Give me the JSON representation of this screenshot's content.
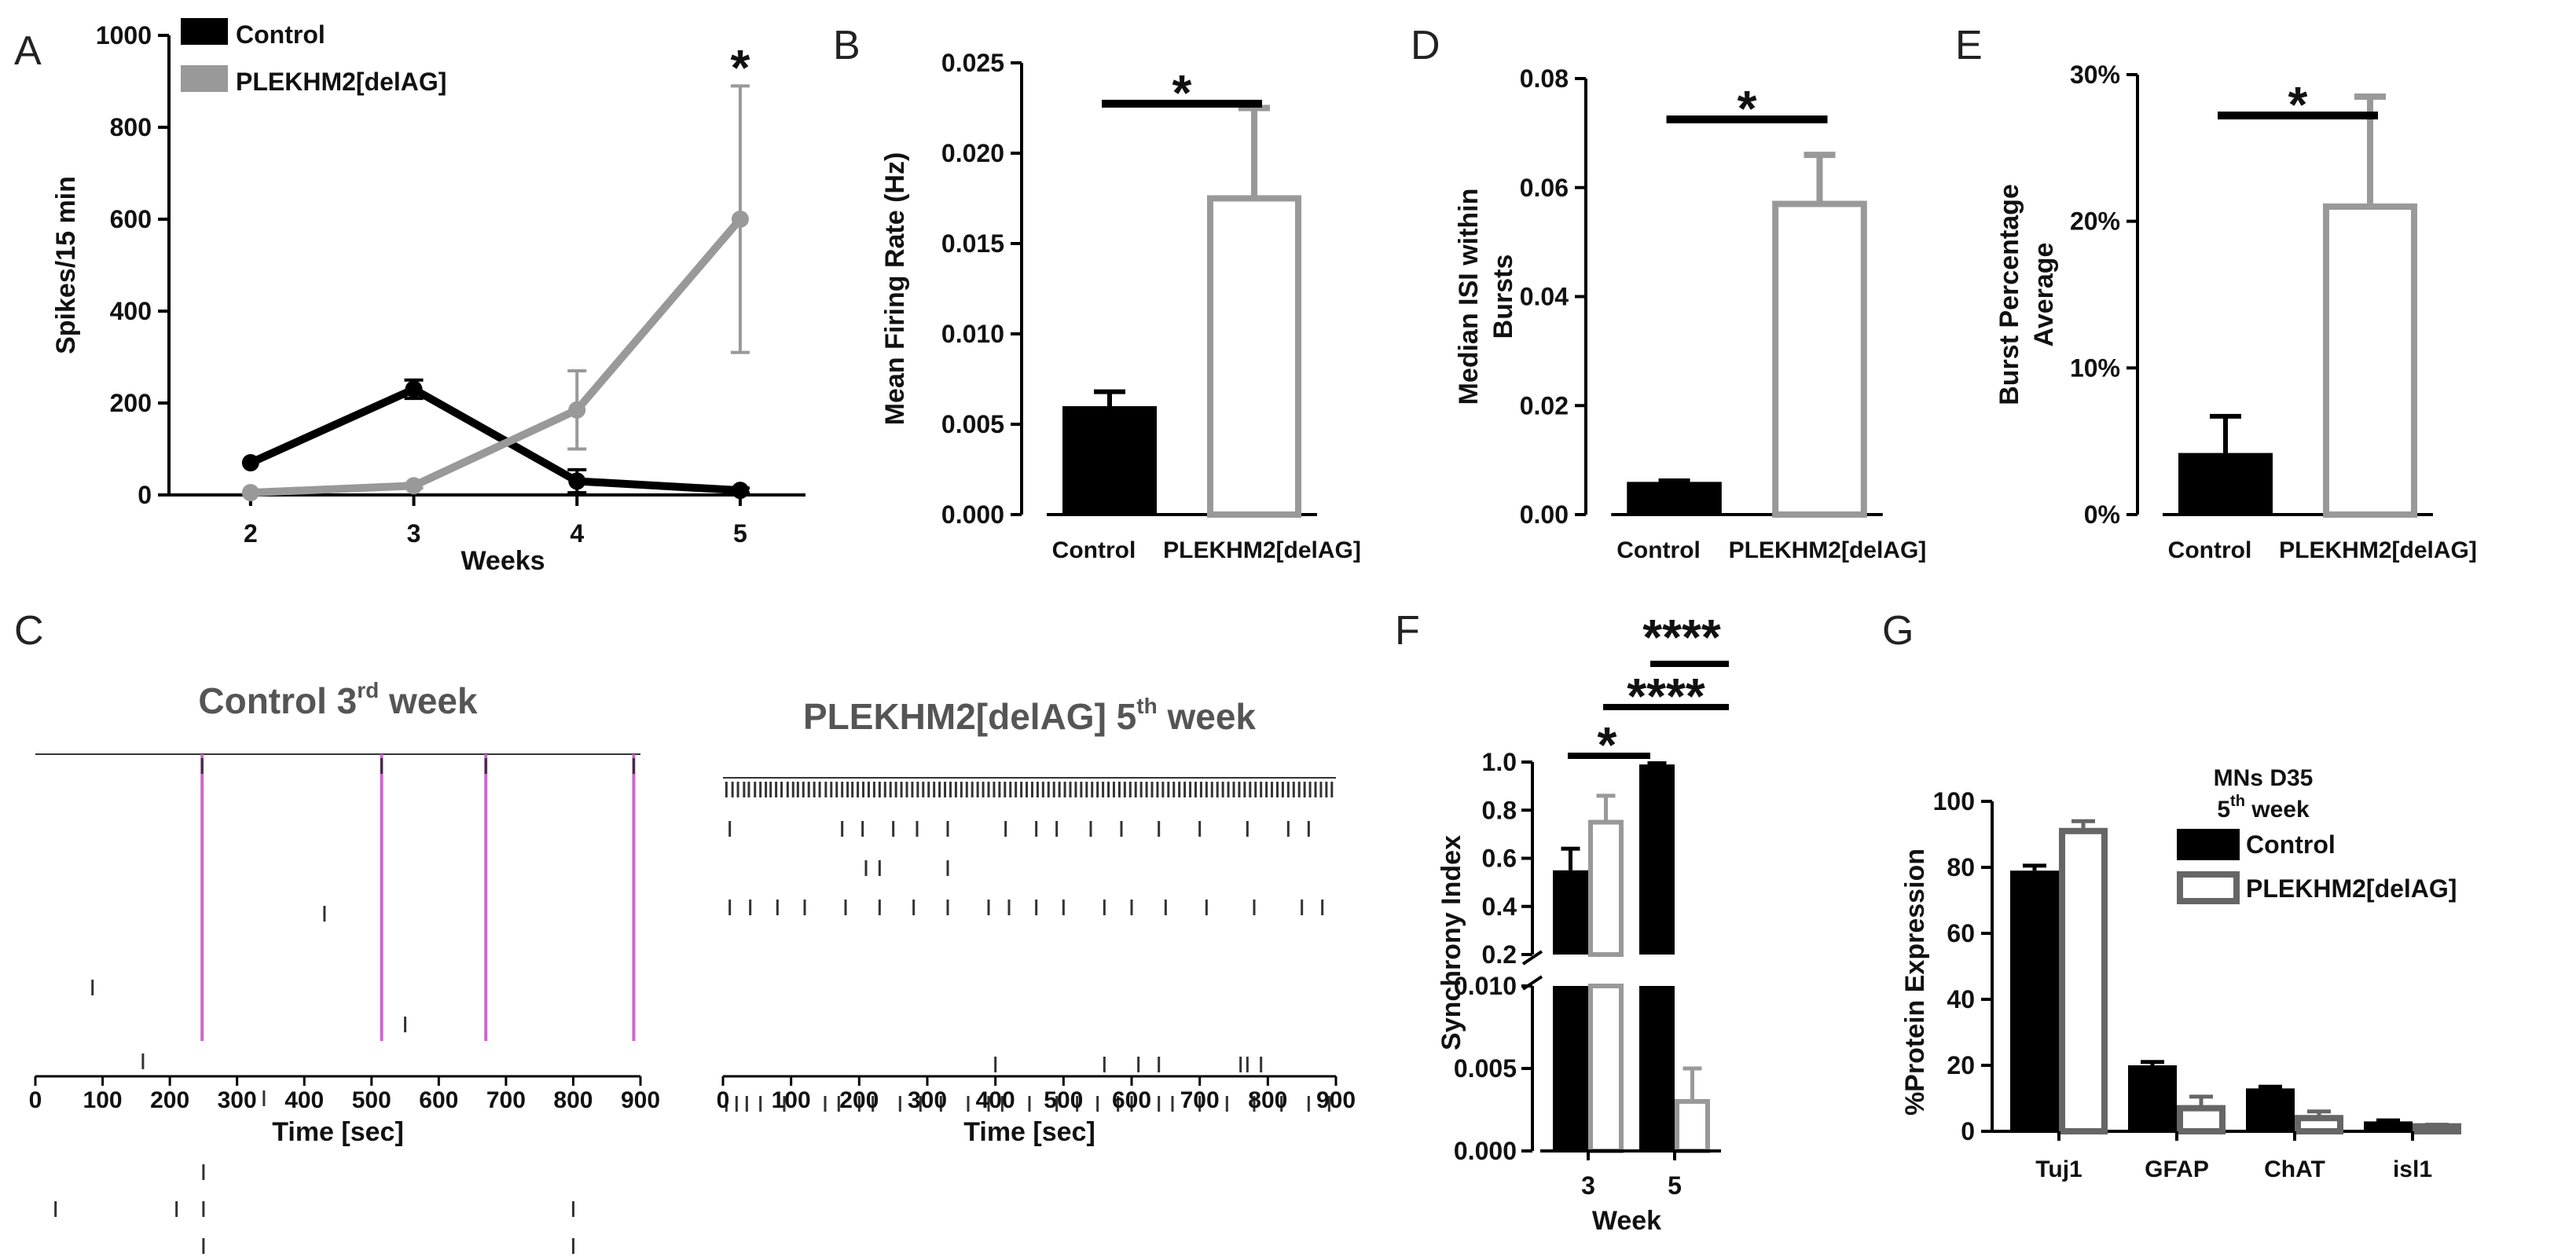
{
  "colors": {
    "control": "#000000",
    "mutant": "#999999",
    "raster": "#333333",
    "sync": "#cc66cc"
  },
  "panels": {
    "A": {
      "label": "A",
      "chart_data": {
        "type": "line",
        "xlabel": "Weeks",
        "ylabel": "Spikes/15 min",
        "x": [
          2,
          3,
          4,
          5
        ],
        "ylim": [
          0,
          1000
        ],
        "y_ticks": [
          0,
          200,
          400,
          600,
          800,
          1000
        ],
        "series": [
          {
            "name": "Control",
            "values": [
              70,
              230,
              30,
              10
            ],
            "errors": [
              0,
              20,
              25,
              5
            ]
          },
          {
            "name": "PLEKHM2[delAG]",
            "values": [
              5,
              20,
              185,
              600
            ],
            "errors": [
              0,
              5,
              85,
              290
            ]
          }
        ],
        "annotations": [
          {
            "text": "*",
            "x": 5
          }
        ]
      }
    },
    "B": {
      "label": "B",
      "chart_data": {
        "type": "bar",
        "ylabel": "Mean Firing Rate (Hz)",
        "categories": [
          "Control",
          "PLEKHM2[delAG]"
        ],
        "values": [
          0.006,
          0.0175
        ],
        "errors": [
          0.0008,
          0.005
        ],
        "ylim": [
          0,
          0.025
        ],
        "y_ticks": [
          "0.000",
          "0.005",
          "0.010",
          "0.015",
          "0.020",
          "0.025"
        ],
        "significance": "*"
      }
    },
    "D": {
      "label": "D",
      "chart_data": {
        "type": "bar",
        "ylabel_line1": "Median ISI within",
        "ylabel_line2": "Bursts",
        "categories": [
          "Control",
          "PLEKHM2[delAG]"
        ],
        "values": [
          0.006,
          0.057
        ],
        "errors": [
          0.0002,
          0.009
        ],
        "ylim": [
          0,
          0.08
        ],
        "y_ticks": [
          "0.00",
          "0.02",
          "0.04",
          "0.06",
          "0.08"
        ],
        "significance": "*"
      }
    },
    "E": {
      "label": "E",
      "chart_data": {
        "type": "bar",
        "ylabel_line1": "Burst Percentage",
        "ylabel_line2": "Average",
        "categories": [
          "Control",
          "PLEKHM2[delAG]"
        ],
        "values": [
          4.2,
          21
        ],
        "errors": [
          2.5,
          7.5
        ],
        "ylim": [
          0,
          30
        ],
        "y_ticks": [
          "0%",
          "10%",
          "20%",
          "30%"
        ],
        "significance": "*"
      }
    },
    "C": {
      "label": "C",
      "chart_data": {
        "type": "raster",
        "plots": [
          {
            "title": "Control 3",
            "title_sup": "rd",
            "title_tail": " week",
            "xlabel": "Time [sec]",
            "x_ticks": [
              "0",
              "100",
              "200",
              "300",
              "400",
              "500",
              "600",
              "700",
              "800",
              "900"
            ],
            "sync_events": [
              248,
              515,
              670,
              890
            ],
            "rows": [
              [
                248,
                515,
                670,
                890
              ],
              [],
              [],
              [],
              [
                430
              ],
              [],
              [
                85
              ],
              [
                550
              ],
              [
                160
              ],
              [
                340
              ],
              [],
              [
                250
              ],
              [
                30,
                210,
                250,
                800
              ],
              [
                250,
                800
              ]
            ]
          },
          {
            "title": "PLEKHM2[delAG] 5",
            "title_sup": "th",
            "title_tail": " week",
            "xlabel": "Time [sec]",
            "x_ticks": [
              "0",
              "100",
              "200",
              "300",
              "400",
              "500",
              "600",
              "700",
              "800",
              "900"
            ],
            "sync_events": [],
            "rows": [
              [
                5,
                14,
                22,
                31,
                38,
                47,
                55,
                63,
                70,
                78,
                86,
                95,
                103,
                110,
                118,
                126,
                134,
                142,
                151,
                159,
                167,
                175,
                183,
                190,
                198,
                206,
                214,
                222,
                230,
                238,
                246,
                254,
                262,
                270,
                278,
                286,
                294,
                302,
                310,
                318,
                326,
                334,
                342,
                350,
                358,
                366,
                374,
                382,
                390,
                398,
                406,
                414,
                422,
                430,
                438,
                446,
                454,
                462,
                470,
                478,
                486,
                494,
                502,
                510,
                518,
                526,
                534,
                542,
                550,
                558,
                566,
                574,
                582,
                590,
                598,
                606,
                614,
                622,
                630,
                638,
                646,
                654,
                662,
                670,
                678,
                686,
                694,
                702,
                710,
                718,
                726,
                734,
                742,
                750,
                758,
                766,
                774,
                782,
                790,
                798,
                806,
                814,
                822,
                830,
                838,
                846,
                854,
                862,
                870,
                878,
                886,
                894
              ],
              [
                10,
                175,
                205,
                250,
                285,
                330,
                415,
                460,
                490,
                540,
                585,
                640,
                700,
                770,
                830,
                860
              ],
              [
                210,
                230,
                330
              ],
              [
                10,
                40,
                80,
                120,
                180,
                230,
                280,
                330,
                390,
                420,
                460,
                500,
                560,
                600,
                650,
                710,
                780,
                850,
                880
              ],
              [],
              [],
              [],
              [
                400,
                560,
                610,
                640,
                760,
                770,
                790
              ],
              [
                5,
                20,
                35,
                55,
                90,
                150,
                170,
                200,
                220,
                260,
                290,
                320,
                360,
                390,
                410,
                450,
                490,
                520,
                550,
                580,
                600,
                640,
                660,
                700,
                740,
                780,
                820,
                860,
                890
              ]
            ]
          }
        ]
      }
    },
    "F": {
      "label": "F",
      "chart_data": {
        "type": "bar",
        "ylabel": "Synchrony Index",
        "xlabel": "Week",
        "categories": [
          "3",
          "5"
        ],
        "series": [
          {
            "name": "Control",
            "values": [
              0.55,
              0.99
            ],
            "errors": [
              0.09,
              0.005
            ]
          },
          {
            "name": "PLEKHM2[delAG]",
            "values": [
              0.75,
              0.003
            ],
            "errors": [
              0.11,
              0.002
            ]
          }
        ],
        "y_ticks_upper": [
          "0.2",
          "0.4",
          "0.6",
          "0.8",
          "1.0"
        ],
        "y_ticks_lower": [
          "0.000",
          "0.005",
          "0.010"
        ],
        "significance": [
          "*",
          "****",
          "****"
        ]
      }
    },
    "G": {
      "label": "G",
      "chart_data": {
        "type": "bar",
        "ylabel": "%Protein Expression",
        "categories": [
          "Tuj1",
          "GFAP",
          "ChAT",
          "isl1"
        ],
        "series": [
          {
            "name": "Control",
            "values": [
              79,
              20,
              13,
              3
            ],
            "errors": [
              1.5,
              1,
              0.5,
              0.3
            ]
          },
          {
            "name": "PLEKHM2[delAG]",
            "values": [
              91,
              7,
              4,
              1.5
            ],
            "errors": [
              3,
              3.5,
              2,
              0.5
            ]
          }
        ],
        "ylim": [
          0,
          100
        ],
        "y_ticks": [
          0,
          20,
          40,
          60,
          80,
          100
        ],
        "legend_title_line1": "MNs D35",
        "legend_title_line2": "5",
        "legend_title_sup": "th",
        "legend_title_tail": "week"
      }
    }
  }
}
